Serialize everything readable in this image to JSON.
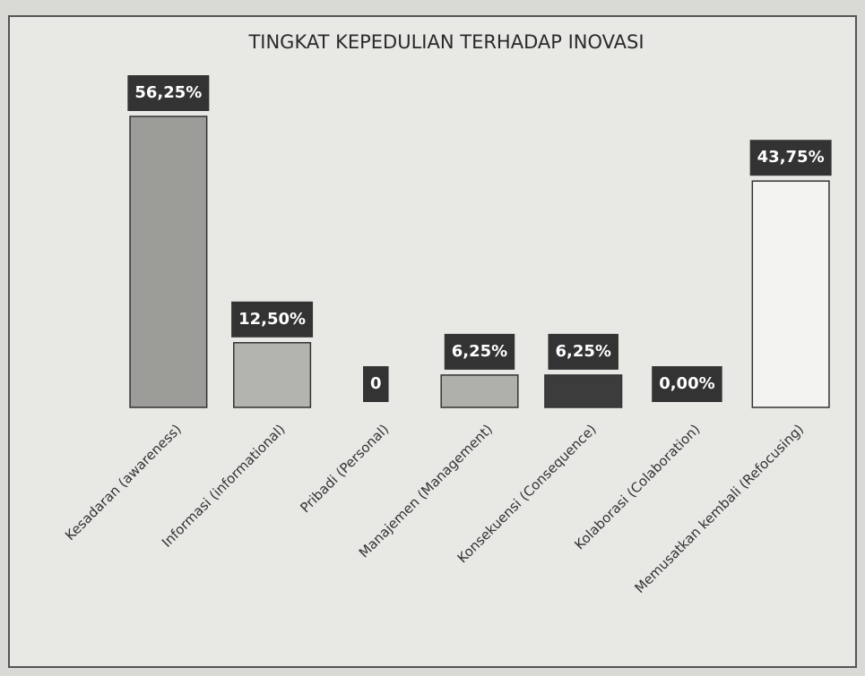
{
  "chart_data": {
    "type": "bar",
    "title": "TINGKAT KEPEDULIAN TERHADAP INOVASI",
    "categories": [
      "Kesadaran (awareness)",
      "Informasi (informational)",
      "Pribadi (Personal)",
      "Manajemen (Management)",
      "Konsekuensi (Consequence)",
      "Kolaborasi (Colaboration)",
      "Memusatkan kembali (Refocusing)"
    ],
    "values": [
      56.25,
      12.5,
      0,
      6.25,
      6.25,
      0,
      43.75
    ],
    "value_labels": [
      "56,25%",
      "12,50%",
      "0",
      "6,25%",
      "6,25%",
      "0,00%",
      "43,75%"
    ],
    "colors": [
      "#9c9c99",
      "#b4b4af",
      "#3a3a3a",
      "#b0b0ab",
      "#3c3c3c",
      "#8a8a88",
      "#f3f3f1"
    ]
  }
}
